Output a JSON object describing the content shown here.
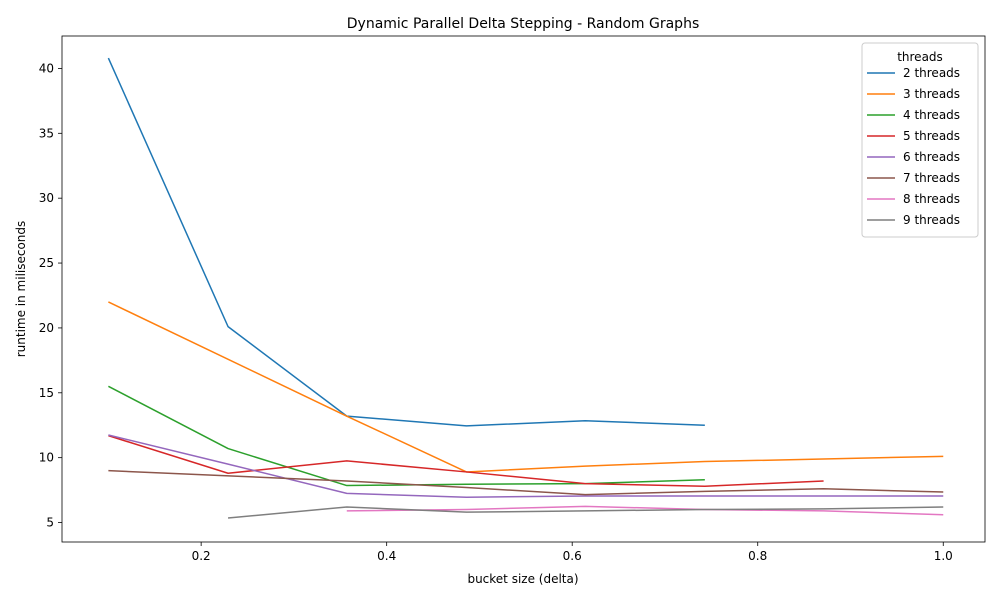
{
  "chart_data": {
    "type": "line",
    "title": "Dynamic Parallel Delta Stepping - Random Graphs",
    "xlabel": "bucket size (delta)",
    "ylabel": "runtime in miliseconds",
    "xlim": [
      0.05,
      1.045
    ],
    "ylim": [
      3.5,
      42.5
    ],
    "xticks": [
      0.2,
      0.4,
      0.6,
      0.8,
      1.0
    ],
    "xtick_labels": [
      "0.2",
      "0.4",
      "0.6",
      "0.8",
      "1.0"
    ],
    "yticks": [
      5,
      10,
      15,
      20,
      25,
      30,
      35,
      40
    ],
    "ytick_labels": [
      "5",
      "10",
      "15",
      "20",
      "25",
      "30",
      "35",
      "40"
    ],
    "grid": false,
    "legend": {
      "title": "threads",
      "placement": "top-right"
    },
    "series": [
      {
        "name": "2 threads",
        "color": "#1f77b4",
        "x": [
          0.1,
          0.229,
          0.357,
          0.486,
          0.614,
          0.743
        ],
        "y": [
          40.8,
          20.1,
          13.2,
          12.45,
          12.85,
          12.5
        ]
      },
      {
        "name": "3 threads",
        "color": "#ff7f0e",
        "x": [
          0.1,
          0.357,
          0.486,
          0.614,
          0.743,
          1.0
        ],
        "y": [
          22.0,
          13.2,
          8.9,
          9.35,
          9.7,
          10.1
        ]
      },
      {
        "name": "4 threads",
        "color": "#2ca02c",
        "x": [
          0.1,
          0.229,
          0.357,
          0.486,
          0.614,
          0.743
        ],
        "y": [
          15.5,
          10.7,
          7.85,
          7.95,
          8.0,
          8.3
        ]
      },
      {
        "name": "5 threads",
        "color": "#d62728",
        "x": [
          0.1,
          0.229,
          0.357,
          0.486,
          0.614,
          0.743,
          0.871
        ],
        "y": [
          11.7,
          8.8,
          9.75,
          8.9,
          8.0,
          7.8,
          8.2
        ]
      },
      {
        "name": "6 threads",
        "color": "#9467bd",
        "x": [
          0.1,
          0.229,
          0.357,
          0.486,
          0.614,
          0.743,
          0.871,
          1.0
        ],
        "y": [
          11.75,
          9.5,
          7.25,
          6.95,
          7.05,
          7.05,
          7.05,
          7.05
        ]
      },
      {
        "name": "7 threads",
        "color": "#8c564b",
        "x": [
          0.1,
          0.357,
          0.486,
          0.614,
          0.743,
          0.871,
          1.0
        ],
        "y": [
          9.0,
          8.2,
          7.7,
          7.15,
          7.4,
          7.6,
          7.35
        ]
      },
      {
        "name": "8 threads",
        "color": "#e377c2",
        "x": [
          0.357,
          0.486,
          0.614,
          0.743,
          0.871,
          1.0
        ],
        "y": [
          5.9,
          6.0,
          6.25,
          6.0,
          5.9,
          5.6
        ]
      },
      {
        "name": "9 threads",
        "color": "#7f7f7f",
        "x": [
          0.229,
          0.357,
          0.486,
          0.614,
          0.743,
          0.871,
          1.0
        ],
        "y": [
          5.35,
          6.2,
          5.8,
          5.9,
          6.0,
          6.05,
          6.2
        ]
      }
    ]
  }
}
